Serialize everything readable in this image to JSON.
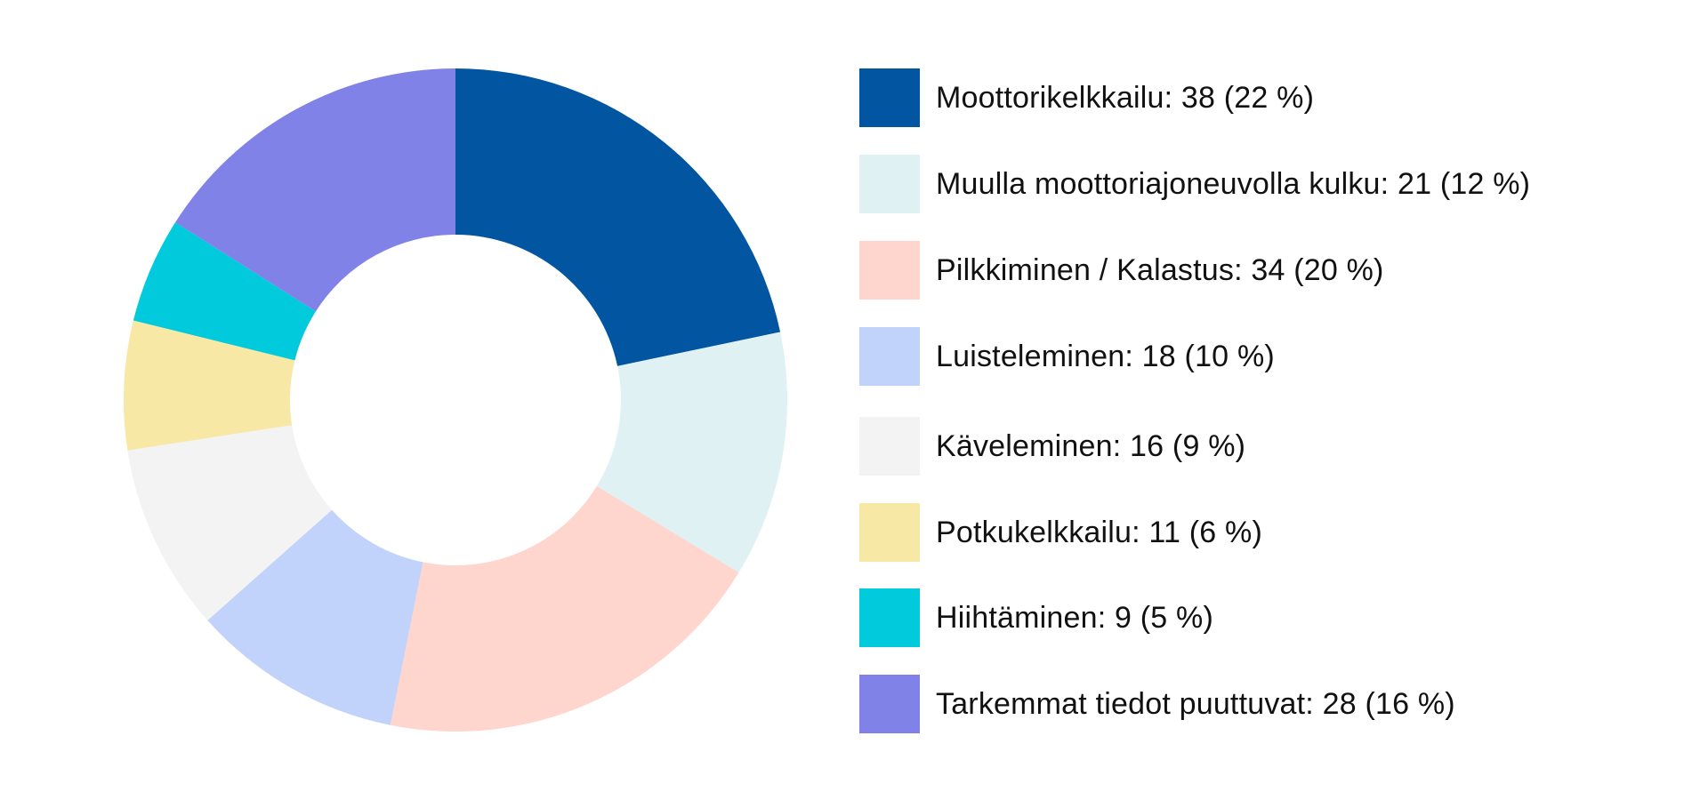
{
  "chart_data": {
    "type": "pie",
    "variant": "donut",
    "title": "",
    "legend_position": "right",
    "slices": [
      {
        "label": "Moottorikelkkailu: 38 (22 %)",
        "category": "Moottorikelkkailu",
        "value": 38,
        "percent": 22,
        "color": "#0255A1"
      },
      {
        "label": "Muulla moottoriajoneuvolla kulku: 21 (12 %)",
        "category": "Muulla moottoriajoneuvolla kulku",
        "value": 21,
        "percent": 12,
        "color": "#DFF1F3"
      },
      {
        "label": "Pilkkiminen / Kalastus: 34 (20 %)",
        "category": "Pilkkiminen / Kalastus",
        "value": 34,
        "percent": 20,
        "color": "#FED6CE"
      },
      {
        "label": "Luisteleminen: 18 (10 %)",
        "category": "Luisteleminen",
        "value": 18,
        "percent": 10,
        "color": "#C2D3FB"
      },
      {
        "label": "Käveleminen: 16 (9 %)",
        "category": "Käveleminen",
        "value": 16,
        "percent": 9,
        "color": "#F3F3F3"
      },
      {
        "label": "Potkukelkkailu: 11 (6 %)",
        "category": "Potkukelkkailu",
        "value": 11,
        "percent": 6,
        "color": "#F8E8A5"
      },
      {
        "label": "Hiihtäminen: 9 (5 %)",
        "category": "Hiihtäminen",
        "value": 9,
        "percent": 5,
        "color": "#00CADB"
      },
      {
        "label": "Tarkemmat tiedot puuttuvat: 28 (16 %)",
        "category": "Tarkemmat tiedot puuttuvat",
        "value": 28,
        "percent": 16,
        "color": "#8182E8"
      }
    ]
  }
}
